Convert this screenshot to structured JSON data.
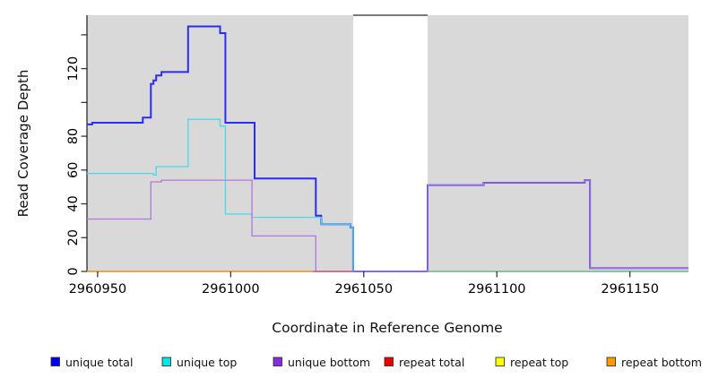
{
  "chart_data": {
    "type": "line",
    "subtype": "step-coverage-plot",
    "title": "",
    "xlabel": "Coordinate in Reference Genome",
    "ylabel": "Read Coverage Depth",
    "xlim": [
      2960946,
      2961172
    ],
    "ylim": [
      0,
      151.6
    ],
    "grid": false,
    "legend_position": "bottom",
    "plot_bg": "#ffffff",
    "covered_region_color": "#d9d9d9",
    "covered_regions": [
      [
        2960946,
        2961046
      ],
      [
        2961074,
        2961172
      ]
    ],
    "gap_region": [
      2961046,
      2961074
    ],
    "x_ticks": [
      {
        "value": 2960950,
        "label": "2960950"
      },
      {
        "value": 2961000,
        "label": "2961000"
      },
      {
        "value": 2961050,
        "label": "2961050"
      },
      {
        "value": 2961100,
        "label": "2961100"
      },
      {
        "value": 2961150,
        "label": "2961150"
      }
    ],
    "y_ticks": [
      {
        "value": 0,
        "label": "0"
      },
      {
        "value": 20,
        "label": "20"
      },
      {
        "value": 40,
        "label": "40"
      },
      {
        "value": 60,
        "label": "60"
      },
      {
        "value": 80,
        "label": "80"
      },
      {
        "value": 100,
        "label": ""
      },
      {
        "value": 120,
        "label": "120"
      },
      {
        "value": 140,
        "label": ""
      }
    ],
    "series": [
      {
        "name": "unique total",
        "legend_color": "#0000ee",
        "line_color": "#2b2bf2",
        "line_width": 2,
        "x_end": 2961172,
        "steps": [
          [
            2960946,
            87
          ],
          [
            2960948,
            88
          ],
          [
            2960967,
            91
          ],
          [
            2960970,
            111
          ],
          [
            2960971,
            113
          ],
          [
            2960972,
            116
          ],
          [
            2960974,
            118
          ],
          [
            2960984,
            145
          ],
          [
            2960996,
            141
          ],
          [
            2960998,
            88
          ],
          [
            2961009,
            55
          ],
          [
            2961032,
            33
          ],
          [
            2961034,
            28
          ],
          [
            2961045,
            26
          ],
          [
            2961046,
            0
          ],
          [
            2961074,
            51
          ],
          [
            2961095,
            52.5
          ],
          [
            2961133,
            54
          ],
          [
            2961135,
            2
          ]
        ]
      },
      {
        "name": "unique top",
        "legend_color": "#00e6e6",
        "line_color": "#4cd8e6",
        "line_width": 1.3,
        "x_end": 2961172,
        "steps": [
          [
            2960946,
            58
          ],
          [
            2960971,
            57
          ],
          [
            2960972,
            62
          ],
          [
            2960984,
            90
          ],
          [
            2960996,
            86
          ],
          [
            2960998,
            34
          ],
          [
            2961008,
            32
          ],
          [
            2961034,
            28
          ],
          [
            2961045,
            26
          ],
          [
            2961046,
            0
          ]
        ]
      },
      {
        "name": "unique bottom",
        "legend_color": "#8a2be2",
        "line_color": "#b277e0",
        "line_width": 1.3,
        "x_end": 2961172,
        "steps": [
          [
            2960946,
            31
          ],
          [
            2960970,
            53
          ],
          [
            2960974,
            54
          ],
          [
            2961008,
            21
          ],
          [
            2961032,
            0
          ],
          [
            2961074,
            51
          ],
          [
            2961095,
            52.5
          ],
          [
            2961133,
            54
          ],
          [
            2961135,
            2
          ]
        ]
      },
      {
        "name": "repeat total",
        "legend_color": "#ee0000",
        "line_color": "#d4608c",
        "line_width": 1.5,
        "x_end": 2961046,
        "steps": [
          [
            2961031,
            0
          ]
        ]
      },
      {
        "name": "repeat top",
        "legend_color": "#ffff00",
        "line_color": "#7cc87c",
        "line_width": 1.3,
        "x_end": 2961172,
        "steps": [
          [
            2961074,
            0
          ]
        ]
      },
      {
        "name": "repeat bottom",
        "legend_color": "#ff9900",
        "line_color": "#ff9d26",
        "line_width": 1.5,
        "x_end": 2961031,
        "steps": [
          [
            2960946,
            0
          ]
        ]
      }
    ]
  }
}
